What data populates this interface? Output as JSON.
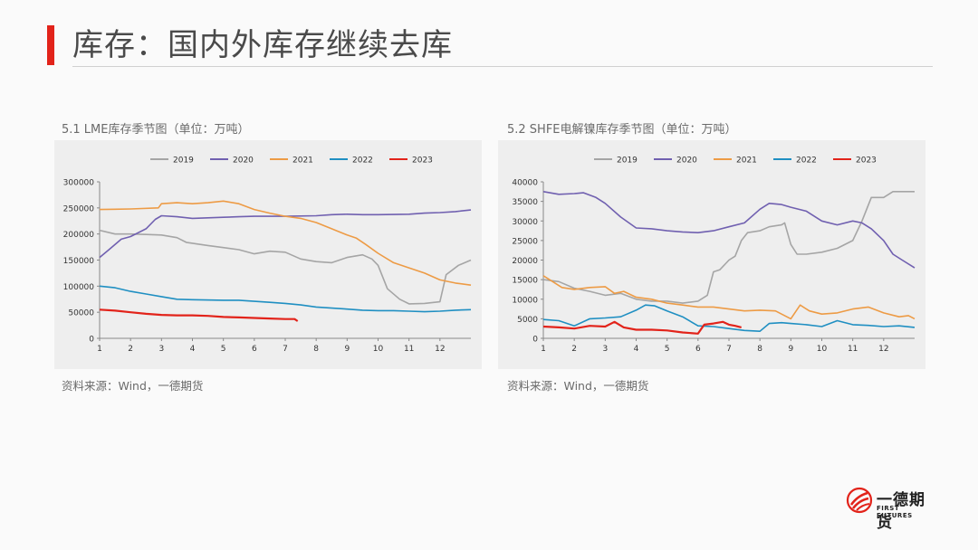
{
  "page": {
    "title": "库存：国内外库存继续去库",
    "brand": {
      "name_cn": "一德期货",
      "name_en": "FIRST FUTURES"
    },
    "colors": {
      "accent": "#e2231a"
    }
  },
  "charts": [
    {
      "caption": "5.1 LME库存季节图（单位：万吨）",
      "source": "资料来源：Wind，一德期货"
    },
    {
      "caption": "5.2 SHFE电解镍库存季节图（单位：万吨）",
      "source": "资料来源：Wind，一德期货"
    }
  ],
  "chart_data": [
    {
      "type": "line",
      "title": "5.1 LME库存季节图（单位：万吨）",
      "xlabel": "",
      "ylabel": "",
      "xlim": [
        1,
        13
      ],
      "ylim": [
        0,
        300000
      ],
      "x_ticks": [
        1,
        2,
        3,
        4,
        5,
        6,
        7,
        8,
        9,
        10,
        11,
        12
      ],
      "y_ticks": [
        0,
        50000,
        100000,
        150000,
        200000,
        250000,
        300000
      ],
      "grid": false,
      "legend": "top",
      "series": [
        {
          "name": "2019",
          "color": "#a5a5a5",
          "points": [
            [
              1,
              207000
            ],
            [
              1.5,
              200000
            ],
            [
              2,
              200000
            ],
            [
              2.5,
              199000
            ],
            [
              3,
              198000
            ],
            [
              3.5,
              193000
            ],
            [
              3.8,
              184000
            ],
            [
              4.5,
              178000
            ],
            [
              5,
              174000
            ],
            [
              5.5,
              170000
            ],
            [
              6,
              162000
            ],
            [
              6.5,
              167000
            ],
            [
              7,
              165000
            ],
            [
              7.5,
              152000
            ],
            [
              8,
              147000
            ],
            [
              8.5,
              145000
            ],
            [
              9,
              155000
            ],
            [
              9.5,
              160000
            ],
            [
              9.8,
              152000
            ],
            [
              10,
              140000
            ],
            [
              10.3,
              95000
            ],
            [
              10.7,
              75000
            ],
            [
              11,
              66000
            ],
            [
              11.5,
              67000
            ],
            [
              12,
              70000
            ],
            [
              12.2,
              122000
            ],
            [
              12.6,
              140000
            ],
            [
              13,
              150000
            ]
          ]
        },
        {
          "name": "2020",
          "color": "#7060b0",
          "points": [
            [
              1,
              155000
            ],
            [
              1.3,
              170000
            ],
            [
              1.7,
              190000
            ],
            [
              2,
              195000
            ],
            [
              2.5,
              210000
            ],
            [
              2.8,
              228000
            ],
            [
              3,
              235000
            ],
            [
              3.5,
              233000
            ],
            [
              4,
              230000
            ],
            [
              4.5,
              231000
            ],
            [
              5,
              232000
            ],
            [
              5.5,
              233000
            ],
            [
              6,
              234000
            ],
            [
              7,
              234000
            ],
            [
              8,
              235000
            ],
            [
              8.5,
              237000
            ],
            [
              9,
              238000
            ],
            [
              9.5,
              237000
            ],
            [
              10,
              237000
            ],
            [
              11,
              238000
            ],
            [
              11.5,
              240000
            ],
            [
              12,
              241000
            ],
            [
              12.5,
              243000
            ],
            [
              13,
              246000
            ]
          ]
        },
        {
          "name": "2021",
          "color": "#ed9b45",
          "points": [
            [
              1,
              247000
            ],
            [
              2,
              248000
            ],
            [
              2.9,
              250000
            ],
            [
              3,
              258000
            ],
            [
              3.5,
              260000
            ],
            [
              4,
              258000
            ],
            [
              4.5,
              260000
            ],
            [
              5,
              263000
            ],
            [
              5.5,
              258000
            ],
            [
              6,
              247000
            ],
            [
              6.5,
              240000
            ],
            [
              7,
              234000
            ],
            [
              7.5,
              230000
            ],
            [
              8,
              222000
            ],
            [
              8.5,
              210000
            ],
            [
              9,
              198000
            ],
            [
              9.3,
              192000
            ],
            [
              9.6,
              180000
            ],
            [
              10,
              163000
            ],
            [
              10.5,
              145000
            ],
            [
              11,
              135000
            ],
            [
              11.5,
              125000
            ],
            [
              12,
              112000
            ],
            [
              12.5,
              106000
            ],
            [
              13,
              102000
            ]
          ]
        },
        {
          "name": "2022",
          "color": "#1f8fc2",
          "points": [
            [
              1,
              100000
            ],
            [
              1.5,
              97000
            ],
            [
              2,
              90000
            ],
            [
              2.5,
              85000
            ],
            [
              3,
              80000
            ],
            [
              3.5,
              75000
            ],
            [
              4,
              74000
            ],
            [
              5,
              73000
            ],
            [
              5.5,
              73000
            ],
            [
              6,
              71000
            ],
            [
              6.5,
              69000
            ],
            [
              7,
              67000
            ],
            [
              7.5,
              64000
            ],
            [
              8,
              60000
            ],
            [
              9,
              56000
            ],
            [
              9.5,
              54000
            ],
            [
              10,
              53000
            ],
            [
              10.5,
              53000
            ],
            [
              11,
              52000
            ],
            [
              11.5,
              51000
            ],
            [
              12,
              52000
            ],
            [
              12.5,
              54000
            ],
            [
              13,
              55000
            ]
          ]
        },
        {
          "name": "2023",
          "color": "#e2231a",
          "points": [
            [
              1,
              55000
            ],
            [
              1.5,
              53000
            ],
            [
              2,
              50000
            ],
            [
              2.5,
              47000
            ],
            [
              3,
              45000
            ],
            [
              3.5,
              44000
            ],
            [
              4,
              44000
            ],
            [
              4.5,
              43000
            ],
            [
              5,
              41000
            ],
            [
              5.5,
              40000
            ],
            [
              6,
              39000
            ],
            [
              6.5,
              38000
            ],
            [
              7,
              37000
            ],
            [
              7.3,
              37000
            ],
            [
              7.4,
              33000
            ]
          ]
        }
      ]
    },
    {
      "type": "line",
      "title": "5.2 SHFE电解镍库存季节图（单位：万吨）",
      "xlabel": "",
      "ylabel": "",
      "xlim": [
        1,
        13
      ],
      "ylim": [
        0,
        40000
      ],
      "x_ticks": [
        1,
        2,
        3,
        4,
        5,
        6,
        7,
        8,
        9,
        10,
        11,
        12
      ],
      "y_ticks": [
        0,
        5000,
        10000,
        15000,
        20000,
        25000,
        30000,
        35000,
        40000
      ],
      "grid": false,
      "legend": "top",
      "series": [
        {
          "name": "2019",
          "color": "#a5a5a5",
          "points": [
            [
              1,
              15000
            ],
            [
              1.5,
              14500
            ],
            [
              2,
              12800
            ],
            [
              2.5,
              12000
            ],
            [
              3,
              11000
            ],
            [
              3.5,
              11500
            ],
            [
              4,
              10000
            ],
            [
              4.5,
              9500
            ],
            [
              5,
              9500
            ],
            [
              5.5,
              9000
            ],
            [
              6,
              9500
            ],
            [
              6.3,
              11000
            ],
            [
              6.5,
              17000
            ],
            [
              6.7,
              17500
            ],
            [
              7,
              20000
            ],
            [
              7.2,
              21000
            ],
            [
              7.4,
              25000
            ],
            [
              7.6,
              27000
            ],
            [
              8,
              27500
            ],
            [
              8.3,
              28500
            ],
            [
              8.7,
              29000
            ],
            [
              8.8,
              29500
            ],
            [
              9,
              24000
            ],
            [
              9.2,
              21500
            ],
            [
              9.5,
              21500
            ],
            [
              10,
              22000
            ],
            [
              10.5,
              23000
            ],
            [
              11,
              25000
            ],
            [
              11.3,
              30000
            ],
            [
              11.6,
              36000
            ],
            [
              12,
              36000
            ],
            [
              12.3,
              37500
            ],
            [
              12.6,
              37500
            ],
            [
              13,
              37500
            ]
          ]
        },
        {
          "name": "2020",
          "color": "#7060b0",
          "points": [
            [
              1,
              37500
            ],
            [
              1.5,
              36800
            ],
            [
              2,
              37000
            ],
            [
              2.3,
              37200
            ],
            [
              2.7,
              36000
            ],
            [
              3,
              34500
            ],
            [
              3.5,
              31000
            ],
            [
              4,
              28200
            ],
            [
              4.5,
              28000
            ],
            [
              5,
              27500
            ],
            [
              5.5,
              27200
            ],
            [
              6,
              27000
            ],
            [
              6.5,
              27500
            ],
            [
              7,
              28500
            ],
            [
              7.5,
              29500
            ],
            [
              8,
              33000
            ],
            [
              8.3,
              34500
            ],
            [
              8.7,
              34200
            ],
            [
              9,
              33500
            ],
            [
              9.5,
              32500
            ],
            [
              10,
              30000
            ],
            [
              10.5,
              29000
            ],
            [
              11,
              30000
            ],
            [
              11.3,
              29500
            ],
            [
              11.6,
              28000
            ],
            [
              12,
              25000
            ],
            [
              12.3,
              21500
            ],
            [
              12.6,
              20000
            ],
            [
              13,
              18000
            ]
          ]
        },
        {
          "name": "2021",
          "color": "#ed9b45",
          "points": [
            [
              1,
              16000
            ],
            [
              1.3,
              14500
            ],
            [
              1.6,
              13000
            ],
            [
              2,
              12500
            ],
            [
              2.5,
              13000
            ],
            [
              3,
              13200
            ],
            [
              3.3,
              11500
            ],
            [
              3.6,
              12000
            ],
            [
              4,
              10500
            ],
            [
              4.5,
              10000
            ],
            [
              5,
              9000
            ],
            [
              5.5,
              8500
            ],
            [
              6,
              8000
            ],
            [
              6.5,
              8000
            ],
            [
              7,
              7500
            ],
            [
              7.5,
              7000
            ],
            [
              8,
              7200
            ],
            [
              8.5,
              7000
            ],
            [
              9,
              5000
            ],
            [
              9.3,
              8500
            ],
            [
              9.6,
              7000
            ],
            [
              10,
              6200
            ],
            [
              10.5,
              6500
            ],
            [
              11,
              7500
            ],
            [
              11.5,
              8000
            ],
            [
              12,
              6500
            ],
            [
              12.5,
              5500
            ],
            [
              12.8,
              5800
            ],
            [
              13,
              5000
            ]
          ]
        },
        {
          "name": "2022",
          "color": "#1f8fc2",
          "points": [
            [
              1,
              4800
            ],
            [
              1.5,
              4500
            ],
            [
              2,
              3200
            ],
            [
              2.5,
              5000
            ],
            [
              3,
              5200
            ],
            [
              3.5,
              5500
            ],
            [
              4,
              7200
            ],
            [
              4.3,
              8500
            ],
            [
              4.6,
              8300
            ],
            [
              5,
              7000
            ],
            [
              5.5,
              5500
            ],
            [
              6,
              3200
            ],
            [
              6.5,
              3000
            ],
            [
              7,
              2500
            ],
            [
              7.5,
              2000
            ],
            [
              8,
              1800
            ],
            [
              8.3,
              3800
            ],
            [
              8.7,
              4000
            ],
            [
              9,
              3800
            ],
            [
              9.5,
              3500
            ],
            [
              10,
              3000
            ],
            [
              10.5,
              4500
            ],
            [
              11,
              3500
            ],
            [
              11.5,
              3300
            ],
            [
              12,
              3000
            ],
            [
              12.5,
              3200
            ],
            [
              13,
              2800
            ]
          ]
        },
        {
          "name": "2023",
          "color": "#e2231a",
          "points": [
            [
              1,
              3000
            ],
            [
              1.5,
              2800
            ],
            [
              2,
              2500
            ],
            [
              2.5,
              3200
            ],
            [
              3,
              3000
            ],
            [
              3.3,
              4200
            ],
            [
              3.6,
              2800
            ],
            [
              4,
              2200
            ],
            [
              4.5,
              2200
            ],
            [
              5,
              2000
            ],
            [
              5.5,
              1500
            ],
            [
              6,
              1200
            ],
            [
              6.2,
              3500
            ],
            [
              6.5,
              3800
            ],
            [
              6.8,
              4200
            ],
            [
              7,
              3500
            ],
            [
              7.2,
              3200
            ],
            [
              7.4,
              2800
            ]
          ]
        }
      ]
    }
  ]
}
